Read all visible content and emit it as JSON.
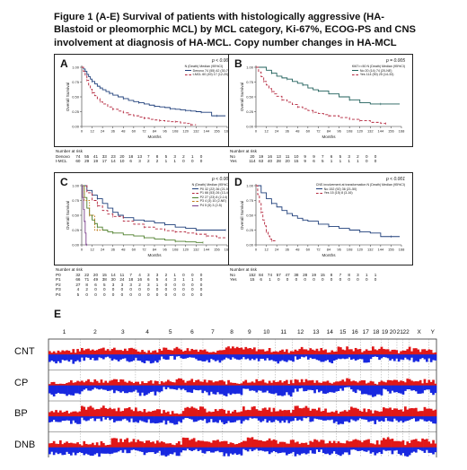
{
  "figure": {
    "caption": "Figure 1 (A-E) Survival of patients with histologically aggressive (HA- Blastoid or pleomorphic MCL) by MCL category, Ki-67%, ECOG-PS and CNS involvement at diagnosis of HA-MCL. Copy number changes in HA-MCL"
  },
  "x_ticks": [
    "0",
    "12",
    "24",
    "36",
    "48",
    "60",
    "72",
    "84",
    "96",
    "108",
    "120",
    "132",
    "144",
    "156",
    "168"
  ],
  "y_ticks": [
    "0.00",
    "0.25",
    "0.50",
    "0.75",
    "1.00"
  ],
  "ylabel": "Overall Survival",
  "xlabel": "Months",
  "risk_header": "Number at risk",
  "chart_data": [
    {
      "type": "line",
      "panel": "A",
      "pvalue": "p < 0.001",
      "legend_title": "N (Death) Median (95%CI)",
      "series": [
        {
          "name": "Denovo 74 (55) 42 (30-70)",
          "color": "#1f3f7a",
          "dash": "",
          "x": [
            0,
            2,
            4,
            6,
            8,
            10,
            12,
            15,
            18,
            21,
            24,
            28,
            32,
            36,
            42,
            48,
            54,
            60,
            66,
            72,
            78,
            84,
            90,
            96,
            102,
            108,
            114,
            120,
            126,
            132,
            138,
            144,
            150,
            156,
            162,
            166
          ],
          "y": [
            1.0,
            0.97,
            0.93,
            0.88,
            0.84,
            0.8,
            0.76,
            0.72,
            0.68,
            0.65,
            0.62,
            0.59,
            0.56,
            0.53,
            0.5,
            0.47,
            0.44,
            0.42,
            0.4,
            0.38,
            0.36,
            0.34,
            0.33,
            0.32,
            0.3,
            0.29,
            0.28,
            0.27,
            0.26,
            0.25,
            0.24,
            0.24,
            0.18,
            0.18,
            0.18,
            0.18
          ]
        },
        {
          "name": "t-MCL 60 (49) 17 (12-20)",
          "color": "#b3243b",
          "dash": "3,2",
          "x": [
            0,
            2,
            4,
            6,
            8,
            10,
            12,
            15,
            18,
            21,
            24,
            30,
            36,
            42,
            48,
            54,
            60,
            66,
            72,
            78,
            84,
            90,
            96,
            102,
            108,
            114,
            120,
            126,
            132
          ],
          "y": [
            1.0,
            0.93,
            0.85,
            0.78,
            0.7,
            0.63,
            0.57,
            0.52,
            0.47,
            0.42,
            0.38,
            0.33,
            0.29,
            0.26,
            0.23,
            0.2,
            0.18,
            0.16,
            0.14,
            0.12,
            0.11,
            0.1,
            0.09,
            0.08,
            0.08,
            0.06,
            0.05,
            0.03,
            0.03
          ]
        }
      ],
      "risk": [
        {
          "label": "Denovo",
          "values": [
            "74",
            "55",
            "41",
            "33",
            "23",
            "20",
            "18",
            "13",
            "7",
            "8",
            "5",
            "3",
            "2",
            "1",
            "0"
          ]
        },
        {
          "label": "t-MCL",
          "values": [
            "60",
            "29",
            "19",
            "17",
            "14",
            "10",
            "6",
            "3",
            "2",
            "2",
            "1",
            "1",
            "0",
            "0",
            "0"
          ]
        }
      ]
    },
    {
      "type": "line",
      "panel": "B",
      "pvalue": "p = 0.005",
      "legend_title": "KI67>=50 N (Death) Median (95%CI)",
      "series": [
        {
          "name": "No 20 (14) 74 (20-NE)",
          "color": "#1f5f5a",
          "dash": "",
          "x": [
            0,
            6,
            12,
            18,
            24,
            30,
            36,
            42,
            48,
            54,
            60,
            66,
            72,
            84,
            96,
            108,
            120,
            132,
            144,
            156,
            166
          ],
          "y": [
            1.0,
            1.0,
            0.95,
            0.9,
            0.85,
            0.82,
            0.8,
            0.76,
            0.73,
            0.7,
            0.65,
            0.62,
            0.6,
            0.55,
            0.5,
            0.45,
            0.4,
            0.38,
            0.38,
            0.38,
            0.38
          ]
        },
        {
          "name": "Yes 114 (90) 25 (14-33)",
          "color": "#b3243b",
          "dash": "3,2",
          "x": [
            0,
            3,
            6,
            9,
            12,
            15,
            18,
            21,
            24,
            30,
            36,
            42,
            48,
            54,
            60,
            66,
            72,
            78,
            84,
            96,
            108,
            120,
            132,
            144,
            150
          ],
          "y": [
            1.0,
            0.92,
            0.84,
            0.76,
            0.7,
            0.64,
            0.59,
            0.55,
            0.51,
            0.45,
            0.41,
            0.37,
            0.33,
            0.3,
            0.27,
            0.24,
            0.22,
            0.2,
            0.18,
            0.15,
            0.12,
            0.1,
            0.07,
            0.05,
            0.05
          ]
        }
      ],
      "risk": [
        {
          "label": "No",
          "values": [
            "20",
            "19",
            "16",
            "13",
            "11",
            "10",
            "9",
            "9",
            "7",
            "6",
            "5",
            "3",
            "2",
            "0",
            "0"
          ]
        },
        {
          "label": "Yes",
          "values": [
            "114",
            "63",
            "40",
            "28",
            "20",
            "15",
            "9",
            "6",
            "5",
            "1",
            "1",
            "1",
            "1",
            "0",
            "0"
          ]
        }
      ]
    },
    {
      "type": "line",
      "panel": "C",
      "pvalue": "p < 0.001",
      "legend_title": "N (Death) Median (95%CI)",
      "series": [
        {
          "name": "P0 32 (22) 36 (21-94)",
          "color": "#1f3f7a",
          "dash": "",
          "x": [
            0,
            6,
            12,
            18,
            24,
            30,
            36,
            42,
            48,
            60,
            72,
            84,
            96,
            108,
            120,
            132,
            144,
            156,
            166
          ],
          "y": [
            1.0,
            0.92,
            0.84,
            0.78,
            0.7,
            0.62,
            0.55,
            0.5,
            0.46,
            0.42,
            0.4,
            0.37,
            0.34,
            0.3,
            0.28,
            0.25,
            0.25,
            0.25,
            0.25
          ]
        },
        {
          "name": "P1 66 (53) 26 (13-46)",
          "color": "#b3243b",
          "dash": "3,2",
          "x": [
            0,
            6,
            12,
            18,
            24,
            30,
            36,
            48,
            60,
            72,
            84,
            96,
            108,
            120,
            132,
            144,
            156,
            166
          ],
          "y": [
            1.0,
            0.88,
            0.75,
            0.66,
            0.58,
            0.52,
            0.48,
            0.4,
            0.35,
            0.3,
            0.27,
            0.24,
            0.22,
            0.2,
            0.18,
            0.15,
            0.12,
            0.12
          ]
        },
        {
          "name": "P2 27 (23) 8 (2-14)",
          "color": "#4d7f2b",
          "dash": "",
          "x": [
            0,
            3,
            6,
            9,
            12,
            15,
            18,
            24,
            30,
            36,
            48,
            60,
            72,
            84,
            96,
            108,
            120,
            132,
            140
          ],
          "y": [
            1.0,
            0.8,
            0.62,
            0.5,
            0.42,
            0.36,
            0.3,
            0.25,
            0.22,
            0.2,
            0.17,
            0.15,
            0.12,
            0.1,
            0.08,
            0.06,
            0.05,
            0.04,
            0.04
          ]
        },
        {
          "name": "P3 4 (3) 10 (2-NE)",
          "color": "#c07a18",
          "dash": "1.5,1.5",
          "x": [
            0,
            3,
            6,
            9,
            12,
            15,
            18,
            24
          ],
          "y": [
            1.0,
            0.75,
            0.75,
            0.5,
            0.5,
            0.25,
            0.25,
            0.25
          ]
        },
        {
          "name": "P4 5 (5) 3 (2-5)",
          "color": "#7a3f8a",
          "dash": "",
          "x": [
            0,
            1,
            2,
            3,
            4,
            5,
            6
          ],
          "y": [
            1.0,
            0.8,
            0.6,
            0.4,
            0.2,
            0.0,
            0.0
          ]
        }
      ],
      "risk": [
        {
          "label": "P0",
          "values": [
            "32",
            "22",
            "20",
            "15",
            "14",
            "11",
            "7",
            "4",
            "3",
            "3",
            "2",
            "1",
            "0",
            "0",
            "0"
          ]
        },
        {
          "label": "P1",
          "values": [
            "66",
            "71",
            "49",
            "38",
            "30",
            "24",
            "18",
            "16",
            "6",
            "5",
            "4",
            "3",
            "1",
            "1",
            "0"
          ]
        },
        {
          "label": "P2",
          "values": [
            "27",
            "8",
            "6",
            "5",
            "3",
            "3",
            "3",
            "2",
            "3",
            "1",
            "0",
            "0",
            "0",
            "0",
            "0"
          ]
        },
        {
          "label": "P3",
          "values": [
            "4",
            "2",
            "0",
            "0",
            "0",
            "0",
            "0",
            "0",
            "0",
            "0",
            "0",
            "0",
            "0",
            "0",
            "0"
          ]
        },
        {
          "label": "P4",
          "values": [
            "5",
            "0",
            "0",
            "0",
            "0",
            "0",
            "0",
            "0",
            "0",
            "0",
            "0",
            "0",
            "0",
            "0",
            "0"
          ]
        }
      ]
    },
    {
      "type": "line",
      "panel": "D",
      "pvalue": "p < 0.001",
      "legend_title": "CNS involvement at transformation N (Death) Median (95%CI)",
      "series": [
        {
          "name": "No 152 (92) 36 (21-50)",
          "color": "#1f3f7a",
          "dash": "",
          "x": [
            0,
            6,
            12,
            18,
            24,
            30,
            36,
            42,
            48,
            54,
            60,
            72,
            84,
            96,
            108,
            120,
            132,
            144,
            156,
            166
          ],
          "y": [
            1.0,
            0.88,
            0.78,
            0.7,
            0.64,
            0.58,
            0.53,
            0.49,
            0.45,
            0.42,
            0.4,
            0.35,
            0.31,
            0.28,
            0.25,
            0.22,
            0.2,
            0.14,
            0.14,
            0.14
          ]
        },
        {
          "name": "Yes 15 (15) 8 (3-16)",
          "color": "#b3243b",
          "dash": "3,2",
          "x": [
            0,
            2,
            4,
            6,
            8,
            10,
            12,
            14,
            16,
            18,
            20,
            24
          ],
          "y": [
            1.0,
            0.85,
            0.7,
            0.55,
            0.42,
            0.32,
            0.22,
            0.15,
            0.1,
            0.07,
            0.07,
            0.07
          ]
        }
      ],
      "risk": [
        {
          "label": "No",
          "values": [
            "152",
            "84",
            "74",
            "57",
            "47",
            "38",
            "28",
            "19",
            "15",
            "8",
            "7",
            "8",
            "3",
            "1",
            "1"
          ]
        },
        {
          "label": "Yes",
          "values": [
            "15",
            "6",
            "1",
            "0",
            "0",
            "0",
            "0",
            "0",
            "0",
            "0",
            "0",
            "0",
            "0",
            "0",
            "0"
          ]
        }
      ]
    }
  ],
  "cnv": {
    "panel_letter": "E",
    "chromosomes": [
      "1",
      "2",
      "3",
      "4",
      "5",
      "6",
      "7",
      "8",
      "9",
      "10",
      "11",
      "12",
      "13",
      "14",
      "15",
      "16",
      "17",
      "18",
      "19",
      "20",
      "21",
      "22",
      "X",
      "Y"
    ],
    "rows": [
      "CNT",
      "CP",
      "BP",
      "DNB"
    ],
    "gain_color": "#e01818",
    "loss_color": "#1828e0"
  }
}
